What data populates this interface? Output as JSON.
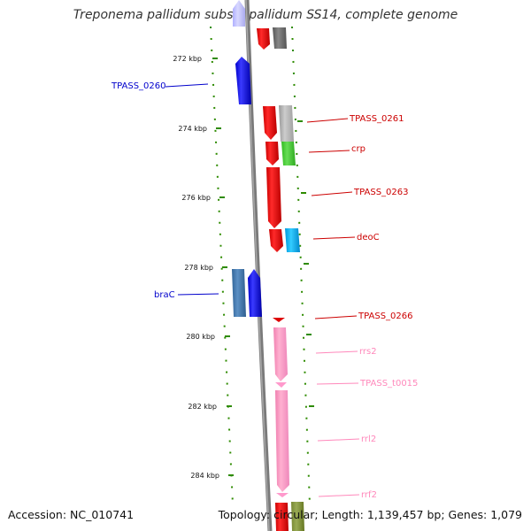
{
  "title": "Treponema pallidum subsp. pallidum SS14, complete genome",
  "footer": {
    "accession": "Accession: NC_010741",
    "summary": "Topology: circular; Length: 1,139,457 bp; Genes: 1,079"
  },
  "colors": {
    "backbone": "#808080",
    "tick": "#2e8b00",
    "reverse_gene": "#0000ee",
    "forward_gene": "#ee0000",
    "rna_gene": "#ff99cc",
    "pseudo_gray": "#aaaaaa",
    "green_gene": "#44cc33",
    "cyan_gene": "#11bbee",
    "steel_gene": "#4682b4"
  },
  "scale_labels": [
    "272 kbp",
    "274 kbp",
    "276 kbp",
    "278 kbp",
    "280 kbp",
    "282 kbp",
    "284 kbp"
  ],
  "gene_labels": [
    {
      "text": "TPASS_0260",
      "color": "#0000cc"
    },
    {
      "text": "TPASS_0261",
      "color": "#cc0000"
    },
    {
      "text": "crp",
      "color": "#cc0000"
    },
    {
      "text": "TPASS_0263",
      "color": "#cc0000"
    },
    {
      "text": "deoC",
      "color": "#cc0000"
    },
    {
      "text": "braC",
      "color": "#0000cc"
    },
    {
      "text": "TPASS_0266",
      "color": "#cc0000"
    },
    {
      "text": "rrs2",
      "color": "#ff88bb"
    },
    {
      "text": "TPASS_t0015",
      "color": "#ff88bb"
    },
    {
      "text": "rrl2",
      "color": "#ff88bb"
    },
    {
      "text": "rrf2",
      "color": "#ff88bb"
    }
  ]
}
